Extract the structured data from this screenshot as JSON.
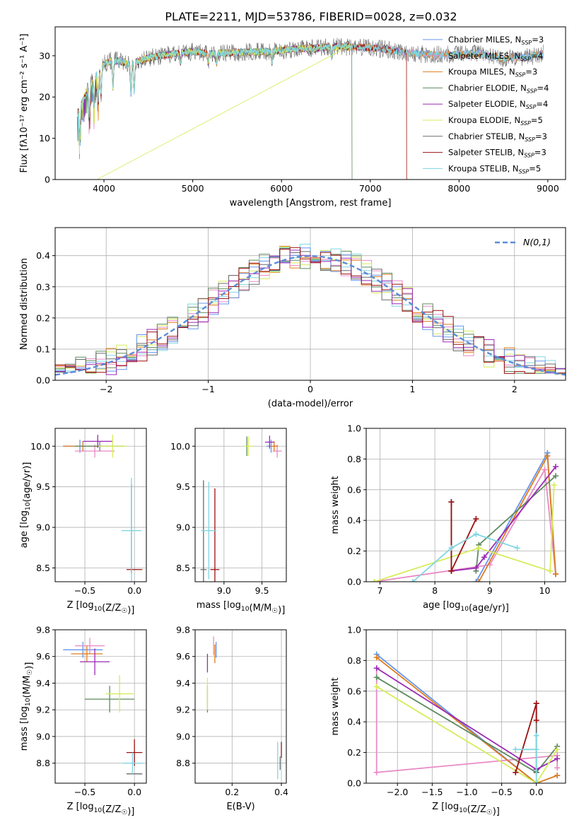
{
  "figure_title": "PLATE=2211, MJD=53786, FIBERID=0028, z=0.032",
  "colors": {
    "Chabrier MILES": "#6495ed",
    "Salpeter MILES": "#e88ac6",
    "Kroupa MILES": "#e07b1a",
    "Chabrier ELODIE": "#5f8a5f",
    "Salpeter ELODIE": "#9b2ab4",
    "Kroupa ELODIE": "#d6ec5a",
    "Chabrier STELIB": "#6b6b6b",
    "Salpeter STELIB": "#9c1010",
    "Kroupa STELIB": "#7fd6e0",
    "normal": "#5a8dd8"
  },
  "chart_data": [
    {
      "id": "spectrum",
      "type": "line",
      "title": "PLATE=2211, MJD=53786, FIBERID=0028, z=0.032",
      "xlabel": "wavelength [Angstrom, rest frame]",
      "ylabel": "Flux [fλ10⁻¹⁷ erg cm⁻² s⁻¹ A⁻¹]",
      "xlim": [
        3450,
        9200
      ],
      "ylim": [
        0,
        37
      ],
      "xticks": [
        4000,
        5000,
        6000,
        7000,
        8000,
        9000
      ],
      "yticks": [
        0,
        10,
        20,
        30
      ],
      "grid": false,
      "legend_position": "top-right",
      "legend": [
        {
          "name": "Chabrier MILES",
          "nssp": "3"
        },
        {
          "name": "Salpeter MILES",
          "nssp": "4"
        },
        {
          "name": "Kroupa MILES",
          "nssp": "3"
        },
        {
          "name": "Chabrier ELODIE",
          "nssp": "4"
        },
        {
          "name": "Salpeter ELODIE",
          "nssp": "4"
        },
        {
          "name": "Kroupa ELODIE",
          "nssp": "5"
        },
        {
          "name": "Chabrier STELIB",
          "nssp": "3"
        },
        {
          "name": "Salpeter STELIB",
          "nssp": "3"
        },
        {
          "name": "Kroupa STELIB",
          "nssp": "5"
        }
      ],
      "continuum": {
        "x": [
          3700,
          3800,
          3900,
          4000,
          4100,
          4300,
          4500,
          4800,
          5000,
          5200,
          5500,
          5800,
          6000,
          6300,
          6600,
          7000,
          7200,
          7500,
          7800,
          8000,
          8200,
          8500,
          8800,
          8950
        ],
        "y": [
          16,
          21,
          25,
          28,
          29,
          28,
          29.5,
          30.5,
          31,
          30.5,
          30.8,
          31,
          31.3,
          31.8,
          32.2,
          32,
          31.5,
          30.5,
          30.2,
          30.4,
          30.6,
          29.2,
          29.8,
          30.5
        ]
      },
      "absorption_lines": [
        3727,
        3835,
        3889,
        3934,
        3968,
        4102,
        4304,
        4340,
        4861,
        5175,
        5270,
        5890,
        6563
      ],
      "drops": [
        {
          "series": "Kroupa ELODIE",
          "x": 3920,
          "y": 0
        },
        {
          "series": "Chabrier ELODIE",
          "x": 6795,
          "y": 0
        },
        {
          "series": "Salpeter STELIB",
          "x": 7410,
          "y": 0
        }
      ],
      "spectrum_ranges": {
        "Chabrier MILES": [
          3700,
          8950
        ],
        "Salpeter MILES": [
          3700,
          8950
        ],
        "Kroupa MILES": [
          3700,
          8950
        ],
        "Chabrier ELODIE": [
          3700,
          6795
        ],
        "Salpeter ELODIE": [
          3700,
          6790
        ],
        "Kroupa ELODIE": [
          3700,
          6790
        ],
        "Chabrier STELIB": [
          3700,
          8950
        ],
        "Salpeter STELIB": [
          3700,
          7410
        ],
        "Kroupa STELIB": [
          3700,
          8950
        ]
      }
    },
    {
      "id": "residuals",
      "type": "line",
      "xlabel": "(data-model)/error",
      "ylabel": "Normed distribution",
      "xlim": [
        -2.5,
        2.5
      ],
      "ylim": [
        0,
        0.49
      ],
      "xticks": [
        -2,
        -1,
        0,
        1,
        2
      ],
      "yticks": [
        0.0,
        0.1,
        0.2,
        0.3,
        0.4
      ],
      "grid": true,
      "legend_position": "top-right",
      "legend": [
        {
          "name": "N(0,1)",
          "style": "dashed"
        }
      ],
      "bin_width": 0.1,
      "normal_curve": {
        "mu": 0,
        "sigma": 1
      }
    },
    {
      "id": "age_Z",
      "type": "scatter",
      "xlabel": "Z [log10(Z/Z☉)]",
      "ylabel": "age  [log10(age/yr)]",
      "xlim": [
        -0.8,
        0.12
      ],
      "ylim": [
        8.33,
        10.22
      ],
      "xticks": [
        -0.5,
        0.0
      ],
      "yticks": [
        8.5,
        9.0,
        9.5,
        10.0
      ],
      "grid": true,
      "points": [
        {
          "series": "Chabrier MILES",
          "x": -0.55,
          "y": 10.0,
          "ex": 0.17,
          "ey": 0.08
        },
        {
          "series": "Salpeter MILES",
          "x": -0.4,
          "y": 9.94,
          "ex": 0.2,
          "ey": 0.08
        },
        {
          "series": "Kroupa MILES",
          "x": -0.52,
          "y": 10.0,
          "ex": 0.2,
          "ey": 0.06
        },
        {
          "series": "Chabrier ELODIE",
          "x": -0.35,
          "y": 10.0,
          "ex": 0.25,
          "ey": 0.06
        },
        {
          "series": "Salpeter ELODIE",
          "x": -0.37,
          "y": 10.06,
          "ex": 0.15,
          "ey": 0.08
        },
        {
          "series": "Kroupa ELODIE",
          "x": -0.22,
          "y": 10.0,
          "ex": 0.14,
          "ey": 0.14
        },
        {
          "series": "Chabrier STELIB",
          "x": -0.03,
          "y": 8.98,
          "ex": 0.0,
          "ey": 0.55
        },
        {
          "series": "Salpeter STELIB",
          "x": 0.0,
          "y": 8.48,
          "ex": 0.08,
          "ey": 0.0
        },
        {
          "series": "Kroupa STELIB",
          "x": -0.03,
          "y": 8.96,
          "ex": 0.1,
          "ey": 0.65
        }
      ]
    },
    {
      "id": "age_mass",
      "type": "scatter",
      "xlabel": "mass [log10(M/M☉)]",
      "ylabel": "",
      "xlim": [
        8.62,
        9.82
      ],
      "ylim": [
        8.33,
        10.22
      ],
      "xticks": [
        9.0,
        9.5
      ],
      "yticks": [
        8.5,
        9.0,
        9.5,
        10.0
      ],
      "grid": true,
      "points": [
        {
          "series": "Chabrier MILES",
          "x": 9.62,
          "y": 10.0,
          "ex": 0.06,
          "ey": 0.08
        },
        {
          "series": "Salpeter MILES",
          "x": 9.7,
          "y": 9.94,
          "ex": 0.06,
          "ey": 0.08
        },
        {
          "series": "Kroupa MILES",
          "x": 9.66,
          "y": 10.0,
          "ex": 0.05,
          "ey": 0.06
        },
        {
          "series": "Chabrier ELODIE",
          "x": 9.3,
          "y": 10.0,
          "ex": 0.0,
          "ey": 0.12
        },
        {
          "series": "Salpeter ELODIE",
          "x": 9.6,
          "y": 10.05,
          "ex": 0.06,
          "ey": 0.08
        },
        {
          "series": "Kroupa ELODIE",
          "x": 9.32,
          "y": 10.0,
          "ex": 0.06,
          "ey": 0.12
        },
        {
          "series": "Chabrier STELIB",
          "x": 8.73,
          "y": 8.48,
          "ex": 0.04,
          "ey": 1.1
        },
        {
          "series": "Salpeter STELIB",
          "x": 8.88,
          "y": 8.48,
          "ex": 0.06,
          "ey": 1.0
        },
        {
          "series": "Kroupa STELIB",
          "x": 8.8,
          "y": 8.96,
          "ex": 0.1,
          "ey": 0.6
        }
      ]
    },
    {
      "id": "weight_age",
      "type": "line",
      "xlabel": "age  [log10(age/yr)]",
      "ylabel": "mass weight",
      "xlim": [
        6.75,
        10.38
      ],
      "ylim": [
        0.0,
        1.0
      ],
      "xticks": [
        7,
        8,
        9,
        10
      ],
      "yticks": [
        0.0,
        0.2,
        0.4,
        0.6,
        0.8,
        1.0
      ],
      "grid": true,
      "series": [
        {
          "name": "Chabrier MILES",
          "x": [
            8.75,
            10.05,
            10.2
          ],
          "y": [
            0.0,
            0.84,
            0.05
          ]
        },
        {
          "name": "Salpeter MILES",
          "x": [
            6.9,
            9.0,
            10.0,
            10.2
          ],
          "y": [
            0.0,
            0.11,
            0.73,
            0.05
          ]
        },
        {
          "name": "Kroupa MILES",
          "x": [
            8.8,
            10.05,
            10.2
          ],
          "y": [
            0.0,
            0.82,
            0.05
          ]
        },
        {
          "name": "Chabrier ELODIE",
          "x": [
            8.75,
            8.8,
            10.2
          ],
          "y": [
            0.07,
            0.24,
            0.69
          ]
        },
        {
          "name": "Salpeter ELODIE",
          "x": [
            8.3,
            8.75,
            8.9,
            10.2
          ],
          "y": [
            0.07,
            0.09,
            0.16,
            0.75
          ]
        },
        {
          "name": "Kroupa ELODIE",
          "x": [
            6.9,
            8.8,
            10.1,
            10.17
          ],
          "y": [
            0.0,
            0.22,
            0.07,
            0.63
          ]
        },
        {
          "name": "Chabrier STELIB",
          "x": [
            8.3,
            8.3
          ],
          "y": [
            0.07,
            0.52
          ]
        },
        {
          "name": "Salpeter STELIB",
          "x": [
            8.3,
            8.3,
            8.3,
            8.75
          ],
          "y": [
            0.52,
            0.07,
            0.07,
            0.41
          ]
        },
        {
          "name": "Kroupa STELIB",
          "x": [
            7.6,
            8.3,
            8.75,
            9.5
          ],
          "y": [
            0.0,
            0.22,
            0.31,
            0.22
          ]
        }
      ]
    },
    {
      "id": "mass_Z",
      "type": "scatter",
      "xlabel": "Z [log10(Z/Z☉)]",
      "ylabel": "mass [log10(M/M☉)]",
      "xlim": [
        -0.8,
        0.12
      ],
      "ylim": [
        8.65,
        9.8
      ],
      "xticks": [
        -0.5,
        0.0
      ],
      "yticks": [
        8.8,
        9.0,
        9.2,
        9.4,
        9.6,
        9.8
      ],
      "grid": true,
      "points": [
        {
          "series": "Chabrier MILES",
          "x": -0.52,
          "y": 9.65,
          "ex": 0.2,
          "ey": 0.06
        },
        {
          "series": "Salpeter MILES",
          "x": -0.45,
          "y": 9.68,
          "ex": 0.15,
          "ey": 0.06
        },
        {
          "series": "Kroupa MILES",
          "x": -0.48,
          "y": 9.62,
          "ex": 0.16,
          "ey": 0.06
        },
        {
          "series": "Chabrier ELODIE",
          "x": -0.25,
          "y": 9.28,
          "ex": 0.25,
          "ey": 0.1
        },
        {
          "series": "Salpeter ELODIE",
          "x": -0.4,
          "y": 9.56,
          "ex": 0.15,
          "ey": 0.1
        },
        {
          "series": "Kroupa ELODIE",
          "x": -0.15,
          "y": 9.32,
          "ex": 0.14,
          "ey": 0.14
        },
        {
          "series": "Chabrier STELIB",
          "x": 0.0,
          "y": 8.72,
          "ex": 0.08,
          "ey": 0.0
        },
        {
          "series": "Salpeter STELIB",
          "x": 0.0,
          "y": 8.88,
          "ex": 0.08,
          "ey": 0.1
        },
        {
          "series": "Kroupa STELIB",
          "x": -0.02,
          "y": 8.8,
          "ex": 0.1,
          "ey": 0.08
        }
      ]
    },
    {
      "id": "mass_ebv",
      "type": "scatter",
      "xlabel": "E(B-V)",
      "ylabel": "",
      "xlim": [
        0.05,
        0.42
      ],
      "ylim": [
        8.65,
        9.8
      ],
      "xticks": [
        0.2,
        0.4
      ],
      "yticks": [
        8.8,
        9.0,
        9.2,
        9.4,
        9.6,
        9.8
      ],
      "grid": true,
      "points": [
        {
          "series": "Chabrier MILES",
          "x": 0.135,
          "y": 9.65,
          "ey": 0.06
        },
        {
          "series": "Salpeter MILES",
          "x": 0.125,
          "y": 9.68,
          "ey": 0.07
        },
        {
          "series": "Kroupa MILES",
          "x": 0.13,
          "y": 9.62,
          "ey": 0.07
        },
        {
          "series": "Chabrier ELODIE",
          "x": 0.1,
          "y": 9.28,
          "ey": 0.1
        },
        {
          "series": "Salpeter ELODIE",
          "x": 0.1,
          "y": 9.55,
          "ey": 0.07
        },
        {
          "series": "Kroupa ELODIE",
          "x": 0.1,
          "y": 9.32,
          "ey": 0.12
        },
        {
          "series": "Chabrier STELIB",
          "x": 0.395,
          "y": 8.8,
          "ey": 0.05
        },
        {
          "series": "Salpeter STELIB",
          "x": 0.4,
          "y": 8.9,
          "ey": 0.06
        },
        {
          "series": "Kroupa STELIB",
          "x": 0.385,
          "y": 8.82,
          "ey": 0.14
        }
      ]
    },
    {
      "id": "weight_Z",
      "type": "line",
      "xlabel": "Z [log10(Z/Z☉)]",
      "ylabel": "mass weight",
      "xlim": [
        -2.45,
        0.42
      ],
      "ylim": [
        0.0,
        1.0
      ],
      "xticks": [
        -2.0,
        -1.5,
        -1.0,
        -0.5,
        0.0
      ],
      "yticks": [
        0.0,
        0.2,
        0.4,
        0.6,
        0.8,
        1.0
      ],
      "grid": true,
      "series": [
        {
          "name": "Chabrier MILES",
          "x": [
            -2.3,
            0.0,
            0.3
          ],
          "y": [
            0.84,
            0.0,
            0.05
          ]
        },
        {
          "name": "Salpeter MILES",
          "x": [
            -2.3,
            -2.3,
            0.3,
            0.3
          ],
          "y": [
            0.75,
            0.07,
            0.18,
            0.1
          ]
        },
        {
          "name": "Kroupa MILES",
          "x": [
            -2.3,
            0.0,
            0.3
          ],
          "y": [
            0.82,
            0.0,
            0.05
          ]
        },
        {
          "name": "Chabrier ELODIE",
          "x": [
            -2.3,
            0.0,
            0.3
          ],
          "y": [
            0.69,
            0.07,
            0.24
          ]
        },
        {
          "name": "Salpeter ELODIE",
          "x": [
            -2.3,
            0.0,
            0.3
          ],
          "y": [
            0.75,
            0.09,
            0.16
          ]
        },
        {
          "name": "Kroupa ELODIE",
          "x": [
            -2.3,
            0.0,
            0.3
          ],
          "y": [
            0.63,
            0.0,
            0.22
          ]
        },
        {
          "name": "Chabrier STELIB",
          "x": [
            0.0,
            0.0
          ],
          "y": [
            0.07,
            0.52
          ]
        },
        {
          "name": "Salpeter STELIB",
          "x": [
            -0.3,
            0.0,
            0.0
          ],
          "y": [
            0.07,
            0.52,
            0.41
          ]
        },
        {
          "name": "Kroupa STELIB",
          "x": [
            -0.3,
            0.0,
            0.0,
            0.0
          ],
          "y": [
            0.22,
            0.22,
            0.31,
            0.0
          ]
        }
      ]
    }
  ]
}
